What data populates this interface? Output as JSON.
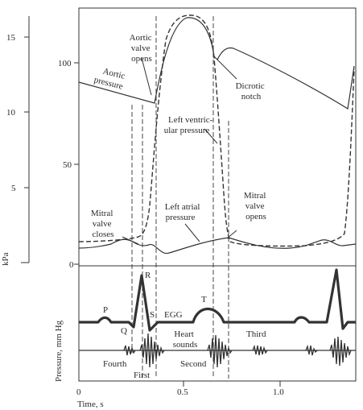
{
  "axes": {
    "kpa_ticks": [
      "15",
      "10",
      "5"
    ],
    "kpa_label": "kPa",
    "mmhg_ticks": [
      "100",
      "50",
      "0"
    ],
    "pressure_label": "Pressure, mm Hg",
    "time_ticks": [
      "0",
      "0.5",
      "1.0"
    ],
    "time_label": "Time, s"
  },
  "annotations": {
    "aortic_valve_opens": [
      "Aortic",
      "valve",
      "opens"
    ],
    "aortic_pressure": [
      "Aortic",
      "pressure"
    ],
    "dicrotic_notch": [
      "Dicrotic",
      "notch"
    ],
    "left_ventricular_pressure": [
      "Left ventric-",
      "ular pressure"
    ],
    "left_atrial_pressure": [
      "Left atrial",
      "pressure"
    ],
    "mitral_valve_closes": [
      "Mitral",
      "valve",
      "closes"
    ],
    "mitral_valve_opens": [
      "Mitral",
      "valve",
      "opens"
    ]
  },
  "ecg": {
    "P": "P",
    "Q": "Q",
    "R": "R",
    "S": "S",
    "T": "T",
    "label": "EGG"
  },
  "heart_sounds": {
    "label": [
      "Heart",
      "sounds"
    ],
    "fourth": "Fourth",
    "first": "First",
    "second": "Second",
    "third": "Third"
  }
}
